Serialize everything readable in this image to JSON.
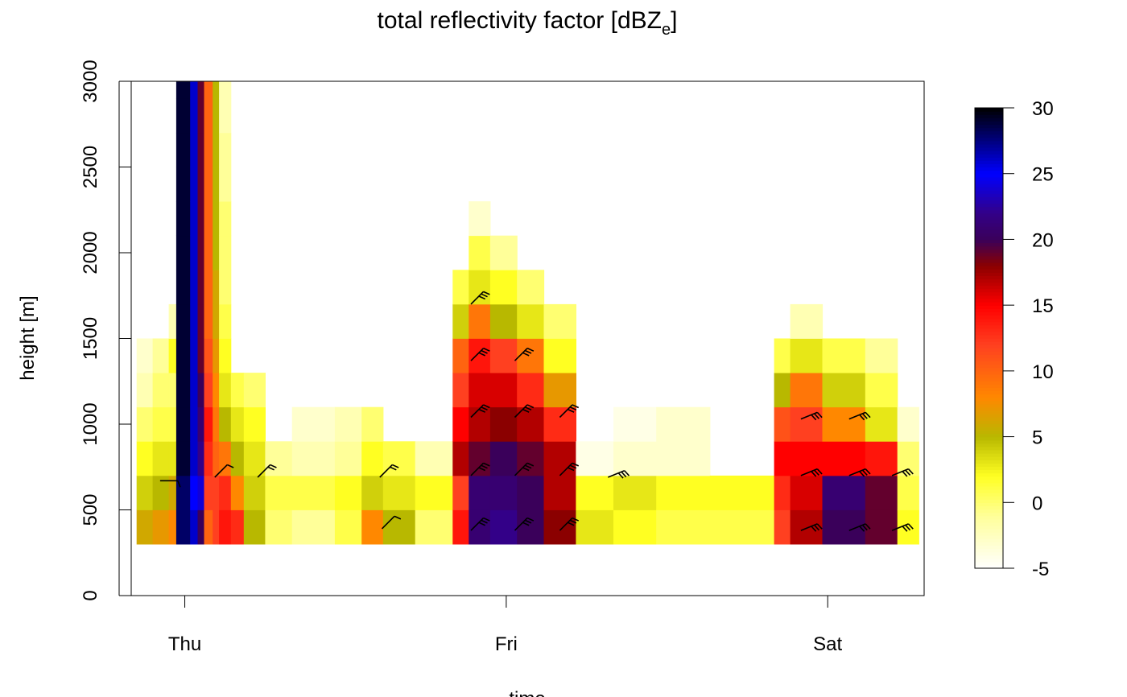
{
  "chart_data": {
    "type": "heatmap",
    "title": {
      "main": "total reflectivity factor [dBZ",
      "subscript": "e",
      "close": "]"
    },
    "xlabel": "time",
    "ylabel": "height [m]",
    "x_axis": {
      "range_hours": [
        -5,
        69
      ],
      "ticks": [
        {
          "hour": 0,
          "label": "Thu"
        },
        {
          "hour": 30,
          "label": "Fri"
        },
        {
          "hour": 60,
          "label": "Sat"
        }
      ]
    },
    "y_axis": {
      "range": [
        0,
        3000
      ],
      "ticks": [
        0,
        500,
        1000,
        1500,
        2000,
        2500,
        3000
      ]
    },
    "colorbar": {
      "range": [
        -5,
        30
      ],
      "ticks": [
        -5,
        0,
        5,
        10,
        15,
        20,
        25,
        30
      ],
      "palette": [
        {
          "v": -5,
          "c": "#ffffff"
        },
        {
          "v": -1,
          "c": "#ffff99"
        },
        {
          "v": 2,
          "c": "#ffff22"
        },
        {
          "v": 5,
          "c": "#b8b800"
        },
        {
          "v": 8,
          "c": "#ff8800"
        },
        {
          "v": 12,
          "c": "#ff4020"
        },
        {
          "v": 15,
          "c": "#ff0000"
        },
        {
          "v": 18,
          "c": "#8b0000"
        },
        {
          "v": 20,
          "c": "#3a005a"
        },
        {
          "v": 22,
          "c": "#330088"
        },
        {
          "v": 25,
          "c": "#0000ff"
        },
        {
          "v": 28,
          "c": "#000066"
        },
        {
          "v": 30,
          "c": "#000000"
        }
      ]
    },
    "height_levels": [
      300,
      500,
      700,
      900,
      1100,
      1300,
      1500,
      1700,
      1900,
      2100,
      2300,
      2500,
      2700,
      2900,
      3100
    ],
    "cells": [
      {
        "x0": -4.5,
        "x1": -3.0,
        "layers": [
          6,
          4,
          2,
          0,
          -2,
          -3,
          -5,
          -5,
          -5,
          -5,
          -5,
          -5,
          -5,
          -5
        ]
      },
      {
        "x0": -3.0,
        "x1": -1.5,
        "layers": [
          7,
          5,
          3,
          1,
          0,
          -1,
          -5,
          -5,
          -5,
          -5,
          -5,
          -5,
          -5,
          -5
        ]
      },
      {
        "x0": -1.5,
        "x1": -0.8,
        "layers": [
          8,
          6,
          3,
          1,
          0,
          2,
          -2,
          -5,
          -5,
          -5,
          -5,
          -5,
          -5,
          -5
        ]
      },
      {
        "x0": -0.8,
        "x1": 0.5,
        "layers": [
          28,
          28,
          29,
          29,
          29,
          29,
          29,
          29,
          29,
          29,
          29,
          29,
          29,
          29
        ]
      },
      {
        "x0": 0.5,
        "x1": 1.2,
        "layers": [
          26,
          25,
          26,
          26,
          26,
          26,
          26,
          26,
          26,
          26,
          26,
          26,
          26,
          26
        ]
      },
      {
        "x0": 1.2,
        "x1": 1.8,
        "layers": [
          20,
          24,
          22,
          21,
          20,
          19,
          19,
          19,
          19,
          19,
          19,
          19,
          19,
          19
        ]
      },
      {
        "x0": 1.8,
        "x1": 2.6,
        "layers": [
          10,
          12,
          13,
          14,
          12,
          11,
          10,
          10,
          10,
          10,
          10,
          10,
          10,
          10
        ]
      },
      {
        "x0": 2.6,
        "x1": 3.2,
        "layers": [
          12,
          12,
          10,
          9,
          8,
          7,
          6,
          6,
          5,
          5,
          5,
          5,
          5,
          5
        ]
      },
      {
        "x0": 3.2,
        "x1": 4.3,
        "layers": [
          14,
          13,
          9,
          5,
          3,
          2,
          1,
          0,
          0,
          0,
          -1,
          -1,
          -2,
          -2
        ]
      },
      {
        "x0": 4.3,
        "x1": 5.5,
        "layers": [
          13,
          8,
          5,
          3,
          1,
          -5,
          -5,
          -5,
          -5,
          -5,
          -5,
          -5,
          -5,
          -5
        ]
      },
      {
        "x0": 5.5,
        "x1": 7.5,
        "layers": [
          5,
          4,
          3,
          2,
          0,
          -5,
          -5,
          -5,
          -5,
          -5,
          -5,
          -5,
          -5,
          -5
        ]
      },
      {
        "x0": 7.5,
        "x1": 10,
        "layers": [
          0,
          1,
          -1,
          -5,
          -5,
          -5,
          -5,
          -5,
          -5,
          -5,
          -5,
          -5,
          -5,
          -5
        ]
      },
      {
        "x0": 10,
        "x1": 14,
        "layers": [
          -1,
          1,
          -2,
          -3,
          -5,
          -5,
          -5,
          -5,
          -5,
          -5,
          -5,
          -5,
          -5,
          -5
        ]
      },
      {
        "x0": 14,
        "x1": 16.5,
        "layers": [
          1,
          2,
          -1,
          -2,
          -5,
          -5,
          -5,
          -5,
          -5,
          -5,
          -5,
          -5,
          -5,
          -5
        ]
      },
      {
        "x0": 16.5,
        "x1": 18.5,
        "layers": [
          8,
          4,
          2,
          0,
          -5,
          -5,
          -5,
          -5,
          -5,
          -5,
          -5,
          -5,
          -5,
          -5
        ]
      },
      {
        "x0": 18.5,
        "x1": 21.5,
        "layers": [
          5,
          3,
          1,
          -5,
          -5,
          -5,
          -5,
          -5,
          -5,
          -5,
          -5,
          -5,
          -5,
          -5
        ]
      },
      {
        "x0": 21.5,
        "x1": 25,
        "layers": [
          0,
          2,
          -2,
          -5,
          -5,
          -5,
          -5,
          -5,
          -5,
          -5,
          -5,
          -5,
          -5,
          -5
        ]
      },
      {
        "x0": 25,
        "x1": 26.5,
        "layers": [
          14,
          12,
          17,
          15,
          12,
          10,
          4,
          1,
          -5,
          -5,
          -5,
          -5,
          -5,
          -5
        ]
      },
      {
        "x0": 26.5,
        "x1": 28.5,
        "layers": [
          21,
          21,
          19,
          17,
          16,
          14,
          9,
          3,
          1,
          -3,
          -5,
          -5,
          -5,
          -5
        ]
      },
      {
        "x0": 28.5,
        "x1": 31,
        "layers": [
          22,
          21,
          20,
          18,
          16,
          12,
          5,
          2,
          -1,
          -5,
          -5,
          -5,
          -5,
          -5
        ]
      },
      {
        "x0": 31,
        "x1": 33.5,
        "layers": [
          20,
          20,
          19,
          17,
          13,
          9,
          3,
          0,
          -5,
          -5,
          -5,
          -5,
          -5,
          -5
        ]
      },
      {
        "x0": 33.5,
        "x1": 36.5,
        "layers": [
          18,
          17,
          17,
          13,
          7,
          2,
          0,
          -5,
          -5,
          -5,
          -5,
          -5,
          -5,
          -5
        ]
      },
      {
        "x0": 36.5,
        "x1": 40,
        "layers": [
          3,
          2,
          -4,
          -5,
          -5,
          -5,
          -5,
          -5,
          -5,
          -5,
          -5,
          -5,
          -5,
          -5
        ]
      },
      {
        "x0": 40,
        "x1": 44,
        "layers": [
          2,
          3,
          -3,
          -4,
          -5,
          -5,
          -5,
          -5,
          -5,
          -5,
          -5,
          -5,
          -5,
          -5
        ]
      },
      {
        "x0": 44,
        "x1": 49,
        "layers": [
          1,
          2,
          -3,
          -3,
          -5,
          -5,
          -5,
          -5,
          -5,
          -5,
          -5,
          -5,
          -5,
          -5
        ]
      },
      {
        "x0": 49,
        "x1": 55,
        "layers": [
          1,
          2,
          -5,
          -5,
          -5,
          -5,
          -5,
          -5,
          -5,
          -5,
          -5,
          -5,
          -5,
          -5
        ]
      },
      {
        "x0": 55,
        "x1": 56.5,
        "layers": [
          12,
          13,
          15,
          11,
          5,
          1,
          -5,
          -5,
          -5,
          -5,
          -5,
          -5,
          -5,
          -5
        ]
      },
      {
        "x0": 56.5,
        "x1": 59.5,
        "layers": [
          17,
          16,
          15,
          12,
          9,
          3,
          -2,
          -5,
          -5,
          -5,
          -5,
          -5,
          -5,
          -5
        ]
      },
      {
        "x0": 59.5,
        "x1": 63.5,
        "layers": [
          20,
          21,
          15,
          8,
          4,
          1,
          -5,
          -5,
          -5,
          -5,
          -5,
          -5,
          -5,
          -5
        ]
      },
      {
        "x0": 63.5,
        "x1": 66.5,
        "layers": [
          19,
          19,
          14,
          3,
          1,
          -1,
          -5,
          -5,
          -5,
          -5,
          -5,
          -5,
          -5,
          -5
        ]
      },
      {
        "x0": 66.5,
        "x1": 68.5,
        "layers": [
          2,
          1,
          0,
          -3,
          -5,
          -5,
          -5,
          -5,
          -5,
          -5,
          -5,
          -5,
          -5,
          -5
        ]
      }
    ],
    "wind_barbs": [
      {
        "hour": -2.3,
        "height": 670,
        "flags": 1,
        "dir": "E"
      },
      {
        "hour": 2.8,
        "height": 690,
        "flags": 1,
        "dir": "NE"
      },
      {
        "hour": 6.8,
        "height": 690,
        "flags": 2,
        "dir": "NE"
      },
      {
        "hour": 18.2,
        "height": 690,
        "flags": 2,
        "dir": "NE"
      },
      {
        "hour": 18.4,
        "height": 390,
        "flags": 1,
        "dir": "NE"
      },
      {
        "hour": 26.7,
        "height": 1700,
        "flags": 3,
        "dir": "NE"
      },
      {
        "hour": 26.7,
        "height": 1370,
        "flags": 3,
        "dir": "NE"
      },
      {
        "hour": 30.8,
        "height": 1370,
        "flags": 3,
        "dir": "NE"
      },
      {
        "hour": 26.7,
        "height": 1040,
        "flags": 3,
        "dir": "NE"
      },
      {
        "hour": 30.8,
        "height": 1040,
        "flags": 3,
        "dir": "NE"
      },
      {
        "hour": 35.0,
        "height": 1040,
        "flags": 3,
        "dir": "NE"
      },
      {
        "hour": 26.7,
        "height": 700,
        "flags": 3,
        "dir": "NE"
      },
      {
        "hour": 30.8,
        "height": 700,
        "flags": 3,
        "dir": "NE"
      },
      {
        "hour": 35.0,
        "height": 700,
        "flags": 3,
        "dir": "NE"
      },
      {
        "hour": 39.5,
        "height": 690,
        "flags": 3,
        "dir": "ENE"
      },
      {
        "hour": 26.7,
        "height": 380,
        "flags": 3,
        "dir": "NE"
      },
      {
        "hour": 30.8,
        "height": 380,
        "flags": 3,
        "dir": "NE"
      },
      {
        "hour": 35.0,
        "height": 380,
        "flags": 3,
        "dir": "NE"
      },
      {
        "hour": 57.5,
        "height": 1030,
        "flags": 3,
        "dir": "ENE"
      },
      {
        "hour": 62.0,
        "height": 1030,
        "flags": 3,
        "dir": "ENE"
      },
      {
        "hour": 57.5,
        "height": 700,
        "flags": 3,
        "dir": "ENE"
      },
      {
        "hour": 62.0,
        "height": 700,
        "flags": 3,
        "dir": "ENE"
      },
      {
        "hour": 66.0,
        "height": 700,
        "flags": 3,
        "dir": "ENE"
      },
      {
        "hour": 57.5,
        "height": 380,
        "flags": 3,
        "dir": "ENE"
      },
      {
        "hour": 62.0,
        "height": 380,
        "flags": 3,
        "dir": "ENE"
      },
      {
        "hour": 66.0,
        "height": 380,
        "flags": 3,
        "dir": "ENE"
      }
    ]
  }
}
